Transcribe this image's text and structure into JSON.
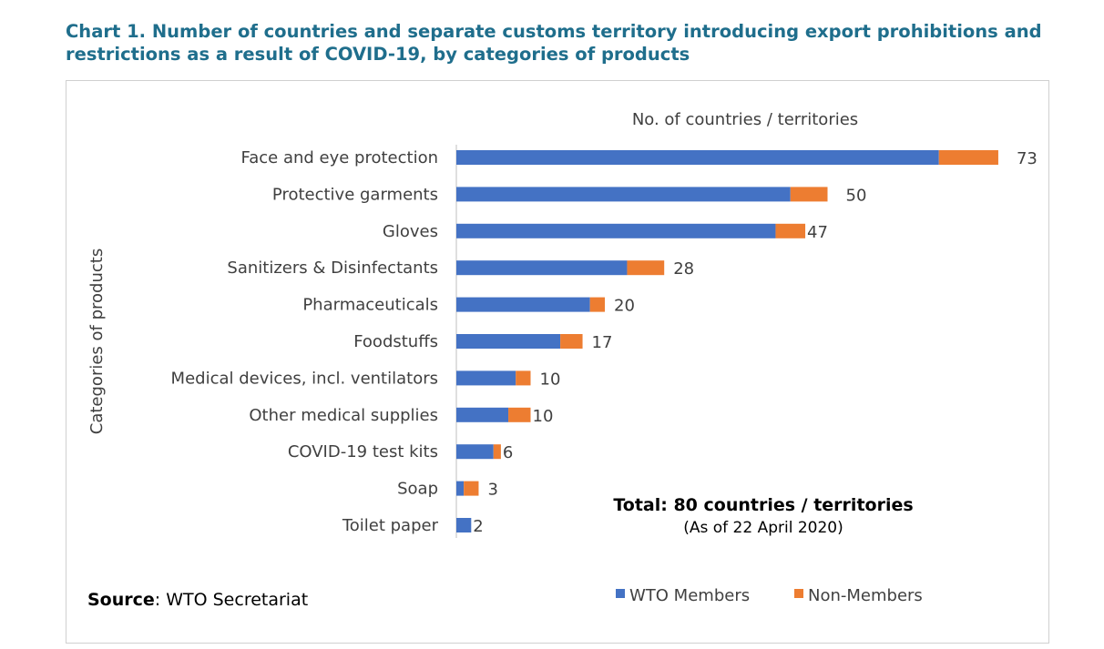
{
  "title": "Chart 1. Number of countries and separate customs territory introducing export prohibitions and restrictions as a result of COVID-19, by categories of products",
  "source": {
    "label": "Source",
    "text": ": WTO Secretariat"
  },
  "colors": {
    "title": "#1F6E8C",
    "wto_members": "#4472C4",
    "non_members": "#ED7D31"
  },
  "chart_data": {
    "type": "bar",
    "orientation": "horizontal",
    "stacked": true,
    "title": "No. of countries / territories",
    "ylabel": "Categories of products",
    "categories": [
      "Face and eye protection",
      "Protective garments",
      "Gloves",
      "Sanitizers & Disinfectants",
      "Pharmaceuticals",
      "Foodstuffs",
      "Medical devices, incl. ventilators",
      "Other medical supplies",
      "COVID-19 test kits",
      "Soap",
      "Toilet paper"
    ],
    "series": [
      {
        "name": "WTO Members",
        "values": [
          65,
          45,
          43,
          23,
          18,
          14,
          8,
          7,
          5,
          1,
          2
        ]
      },
      {
        "name": "Non-Members",
        "values": [
          8,
          5,
          4,
          5,
          2,
          3,
          2,
          3,
          1,
          2,
          0
        ]
      }
    ],
    "totals": [
      73,
      50,
      47,
      28,
      20,
      17,
      10,
      10,
      6,
      3,
      2
    ],
    "xlim": [
      0,
      80
    ],
    "annotation": {
      "headline": "Total: 80 countries / territories",
      "subline": "(As of 22 April 2020)"
    },
    "legend_position": "bottom",
    "grid": false
  }
}
